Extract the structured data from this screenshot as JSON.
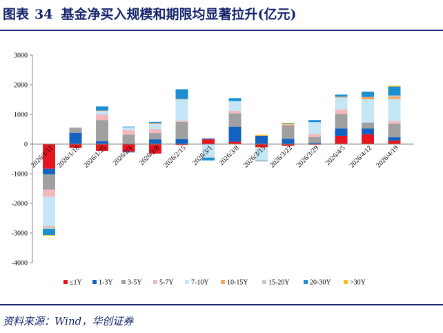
{
  "header": {
    "label": "图表",
    "number": "34",
    "text": "基金净买入规模和期限均显著拉升(亿元)"
  },
  "source": "资料来源：Wind，华创证券",
  "chart_data": {
    "type": "bar",
    "stacked": true,
    "title": "基金净买入规模和期限均显著拉升(亿元)",
    "ylabel": "",
    "xlabel": "",
    "ylim": [
      -4000,
      3000
    ],
    "yticks": [
      3000,
      2000,
      1000,
      0,
      -1000,
      -2000,
      -3000,
      -4000
    ],
    "grid": false,
    "legend_position": "bottom",
    "categories": [
      "2026/1/11",
      "2026/1/18",
      "2026/1/25",
      "2026/2/1",
      "2026/2/8",
      "2026/2/15",
      "2026/3/1",
      "2026/3/8",
      "2026/3/15",
      "2026/3/22",
      "2026/3/29",
      "2026/4/5",
      "2026/4/12",
      "2026/4/19"
    ],
    "series": [
      {
        "name": "≤1Y",
        "color": "#e8141e",
        "values": [
          -830,
          -130,
          -230,
          -250,
          -320,
          -30,
          160,
          80,
          -100,
          -60,
          -20,
          280,
          330,
          120
        ]
      },
      {
        "name": "1-3Y",
        "color": "#1262c2",
        "values": [
          -190,
          380,
          100,
          -30,
          160,
          170,
          30,
          510,
          280,
          180,
          40,
          250,
          200,
          110
        ]
      },
      {
        "name": "3-5Y",
        "color": "#a0a0a0",
        "values": [
          -520,
          160,
          710,
          320,
          210,
          580,
          0,
          450,
          0,
          440,
          200,
          490,
          200,
          460
        ]
      },
      {
        "name": "5-7Y",
        "color": "#f4b8bc",
        "values": [
          -230,
          0,
          190,
          150,
          130,
          40,
          0,
          80,
          -30,
          0,
          100,
          150,
          0,
          90
        ]
      },
      {
        "name": "7-10Y",
        "color": "#c5e6f4",
        "values": [
          -1000,
          0,
          110,
          100,
          180,
          720,
          -440,
          330,
          -420,
          0,
          400,
          400,
          780,
          740
        ]
      },
      {
        "name": "10-15Y",
        "color": "#f4a460",
        "values": [
          -10,
          0,
          20,
          0,
          30,
          10,
          0,
          0,
          -10,
          40,
          0,
          30,
          80,
          80
        ]
      },
      {
        "name": "15-20Y",
        "color": "#c8c8c8",
        "values": [
          -80,
          30,
          0,
          0,
          0,
          0,
          -20,
          0,
          0,
          20,
          0,
          0,
          0,
          40
        ]
      },
      {
        "name": "20-30Y",
        "color": "#1b8fd2",
        "values": [
          -210,
          0,
          140,
          20,
          40,
          330,
          -90,
          100,
          -20,
          20,
          70,
          70,
          180,
          300
        ]
      },
      {
        "name": ">30Y",
        "color": "#f2c31e",
        "values": [
          -20,
          0,
          0,
          0,
          0,
          0,
          0,
          0,
          30,
          20,
          0,
          0,
          0,
          30
        ]
      }
    ]
  }
}
